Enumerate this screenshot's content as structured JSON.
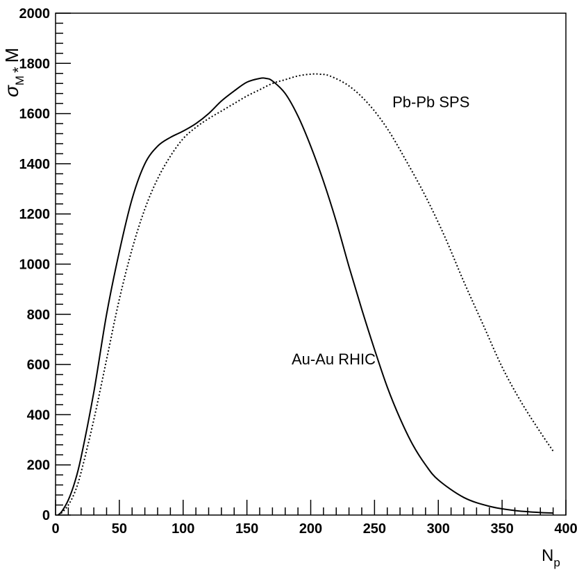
{
  "chart_data": {
    "type": "line",
    "title": "",
    "xlabel": "N",
    "xlabel_sub": "p",
    "ylabel": "σ",
    "ylabel_sub": "M",
    "ylabel_mid": "*",
    "ylabel_tail": "M",
    "xlim": [
      0,
      400
    ],
    "ylim": [
      0,
      2000
    ],
    "x_ticks": [
      0,
      50,
      100,
      150,
      200,
      250,
      300,
      350,
      400
    ],
    "x_tick_labels": [
      "0",
      "50",
      "100",
      "150",
      "200",
      "250",
      "300",
      "350",
      "400"
    ],
    "y_ticks": [
      0,
      200,
      400,
      600,
      800,
      1000,
      1200,
      1400,
      1600,
      1800,
      2000
    ],
    "y_tick_labels": [
      "0",
      "200",
      "400",
      "600",
      "800",
      "1000",
      "1200",
      "1400",
      "1600",
      "1800",
      "2000"
    ],
    "grid": false,
    "legend": "none",
    "series": [
      {
        "name": "Au-Au RHIC",
        "style": "solid",
        "color": "#000000",
        "label_at": [
          185,
          600
        ],
        "x": [
          2,
          5,
          10,
          15,
          20,
          30,
          40,
          50,
          60,
          70,
          80,
          90,
          100,
          110,
          120,
          130,
          140,
          150,
          160,
          165,
          170,
          180,
          190,
          200,
          210,
          220,
          230,
          240,
          250,
          260,
          270,
          280,
          290,
          300,
          320,
          340,
          360,
          380,
          390
        ],
        "y": [
          0,
          15,
          60,
          130,
          230,
          490,
          800,
          1050,
          1260,
          1400,
          1470,
          1505,
          1530,
          1560,
          1600,
          1650,
          1690,
          1725,
          1740,
          1740,
          1730,
          1680,
          1590,
          1470,
          1330,
          1170,
          990,
          820,
          660,
          510,
          385,
          280,
          200,
          140,
          70,
          35,
          18,
          10,
          8
        ]
      },
      {
        "name": "Pb-Pb SPS",
        "style": "dotted",
        "color": "#000000",
        "label_at": [
          264,
          1625
        ],
        "x": [
          2,
          5,
          10,
          15,
          20,
          30,
          40,
          50,
          60,
          70,
          80,
          90,
          100,
          110,
          120,
          130,
          140,
          150,
          160,
          170,
          180,
          190,
          200,
          207,
          215,
          230,
          245,
          260,
          275,
          290,
          305,
          320,
          335,
          350,
          365,
          380,
          390
        ],
        "y": [
          0,
          10,
          40,
          90,
          170,
          380,
          620,
          860,
          1060,
          1220,
          1340,
          1430,
          1500,
          1545,
          1580,
          1610,
          1640,
          1670,
          1695,
          1720,
          1735,
          1750,
          1757,
          1757,
          1750,
          1710,
          1640,
          1540,
          1410,
          1270,
          1110,
          930,
          760,
          590,
          450,
          330,
          255
        ]
      }
    ]
  }
}
